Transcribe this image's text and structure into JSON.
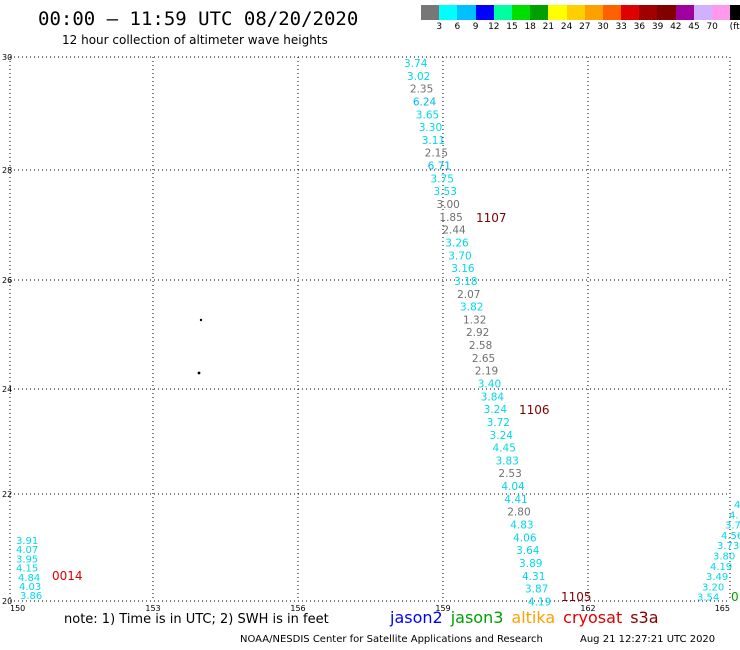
{
  "header": {
    "title": "00:00 – 11:59 UTC 08/20/2020",
    "subtitle": "12 hour collection of altimeter wave heights"
  },
  "legend": {
    "swatches": [
      "#777777",
      "#00ffff",
      "#00c0ff",
      "#0000ff",
      "#00ffa0",
      "#00e000",
      "#00a000",
      "#ffff00",
      "#ffd000",
      "#ffa000",
      "#ff6000",
      "#e00000",
      "#a00000",
      "#800000",
      "#a000a0",
      "#d0b0ff",
      "#ff99ee",
      "#000000"
    ],
    "labels": [
      "3",
      "6",
      "9",
      "12",
      "15",
      "18",
      "21",
      "24",
      "27",
      "30",
      "33",
      "36",
      "39",
      "42",
      "45",
      "70",
      "(ft)"
    ]
  },
  "axes": {
    "x_ticks": [
      "150",
      "153",
      "156",
      "159",
      "162",
      "165"
    ],
    "y_ticks": [
      "30",
      "28",
      "26",
      "24",
      "22",
      "20"
    ]
  },
  "swh_labels": {
    "track_a": [
      "3.74",
      "3.02",
      "2.35",
      "6.24",
      "3.65",
      "3.30",
      "3.11",
      "2.15",
      "6.71",
      "3.75",
      "3.53",
      "3.00",
      "1.85",
      "2.44",
      "3.26",
      "3.70",
      "3.16",
      "3.18",
      "2.07",
      "3.82",
      "1.32",
      "2.92",
      "2.58",
      "2.65",
      "2.19",
      "3.40",
      "3.84",
      "3.24",
      "3.72",
      "3.24",
      "4.45",
      "3.83",
      "2.53",
      "4.04",
      "4.41",
      "2.80",
      "4.83",
      "4.06",
      "3.64",
      "3.89",
      "4.31",
      "3.87",
      "4.19"
    ],
    "track_a_colors": [
      "#00d8e8",
      "#00d8e8",
      "#707070",
      "#00b8f0",
      "#00d8e8",
      "#00d8e8",
      "#00d8e8",
      "#707070",
      "#00b8f0",
      "#00d8e8",
      "#00d8e8",
      "#707070",
      "#707070",
      "#707070",
      "#00d8e8",
      "#00d8e8",
      "#00d8e8",
      "#00d8e8",
      "#707070",
      "#00d8e8",
      "#707070",
      "#707070",
      "#707070",
      "#707070",
      "#707070",
      "#00d8e8",
      "#00d8e8",
      "#00d8e8",
      "#00d8e8",
      "#00d8e8",
      "#00d8e8",
      "#00d8e8",
      "#707070",
      "#00d8e8",
      "#00d8e8",
      "#707070",
      "#00d8e8",
      "#00d8e8",
      "#00d8e8",
      "#00d8e8",
      "#00d8e8",
      "#00d8e8",
      "#00d8e8"
    ],
    "track_left": [
      "3.91",
      "4.07",
      "3.95",
      "4.15",
      "4.84",
      "4.03",
      "3.86"
    ],
    "track_right": [
      "4",
      "4.",
      "3.7",
      "4.56",
      "3.73",
      "3.80",
      "4.19",
      "3.49",
      "3.20",
      "3.54"
    ]
  },
  "pass_labels": {
    "p1107": {
      "text": "1107",
      "color": "#800000"
    },
    "p1106": {
      "text": "1106",
      "color": "#800000"
    },
    "p1105": {
      "text": "1105",
      "color": "#800000"
    },
    "p0014": {
      "text": "0014",
      "color": "#e00000"
    },
    "p_edge": {
      "text": "0",
      "color": "#00a000"
    }
  },
  "footer": {
    "note": "note: 1) Time is in UTC; 2) SWH is in feet",
    "satellites": [
      {
        "name": "jason2",
        "color": "#0000ff"
      },
      {
        "name": "jason3",
        "color": "#00a000"
      },
      {
        "name": "altika",
        "color": "#ffa000"
      },
      {
        "name": "cryosat",
        "color": "#e00000"
      },
      {
        "name": "s3a",
        "color": "#800000"
      }
    ],
    "credit": "NOAA/NESDIS Center for Satellite Applications and Research",
    "timestamp": "Aug 21 12:27:21 UTC 2020"
  }
}
